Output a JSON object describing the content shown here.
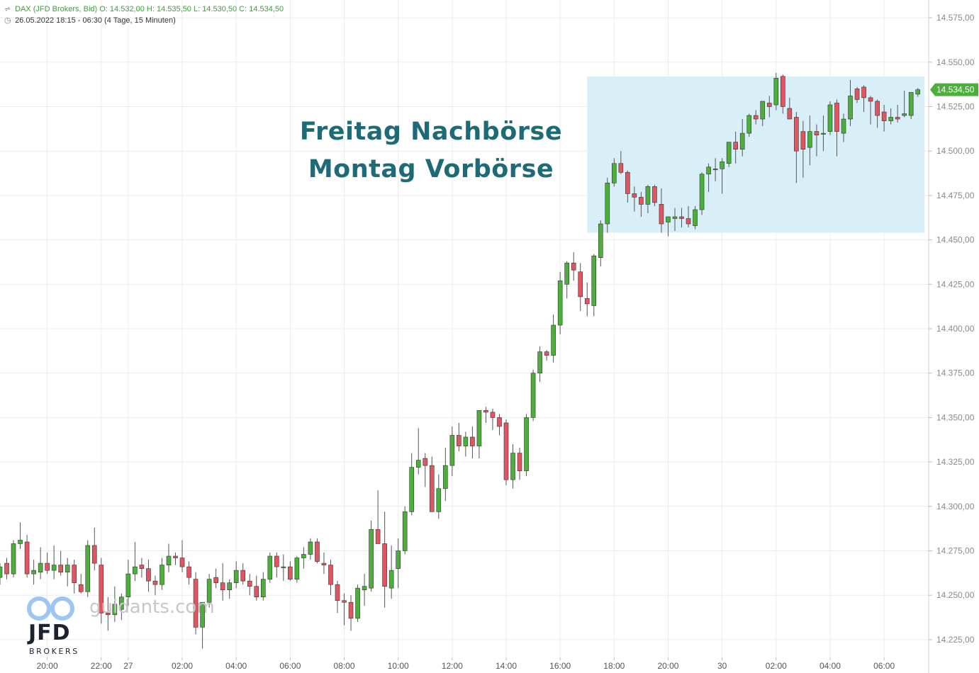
{
  "header": {
    "line1": "DAX (JFD Brokers, Bid)  O: 14.532,00  H: 14.535,50  L: 14.530,50  C: 14.534,50",
    "line2": "26.05.2022 18:15 - 06:30   (4 Tage, 15 Minuten)"
  },
  "annotation": {
    "line1": "Freitag Nachbörse",
    "line2": "Montag Vorbörse"
  },
  "watermark": "guidants.com",
  "logo": {
    "text": "JFD",
    "sub": "BROKERS"
  },
  "colors": {
    "up": "#4caf3a",
    "down": "#e0555f",
    "highlight": "#d8eff8",
    "price_tag": "#4caf3a",
    "title": "#1e6b78"
  },
  "chart_data": {
    "type": "candlestick",
    "y_axis": {
      "range": [
        14215,
        14585
      ],
      "ticks": [
        14225,
        14250,
        14275,
        14300,
        14325,
        14350,
        14375,
        14400,
        14425,
        14450,
        14475,
        14500,
        14525,
        14550,
        14575
      ],
      "tick_labels": [
        "14.225,00",
        "14.250,00",
        "14.275,00",
        "14.300,00",
        "14.325,00",
        "14.350,00",
        "14.375,00",
        "14.400,00",
        "14.425,00",
        "14.450,00",
        "14.475,00",
        "14.500,00",
        "14.525,00",
        "14.550,00",
        "14.575,00"
      ]
    },
    "x_axis": {
      "tick_labels": [
        "20:00",
        "22:00",
        "27",
        "02:00",
        "04:00",
        "06:00",
        "08:00",
        "10:00",
        "12:00",
        "14:00",
        "16:00",
        "18:00",
        "20:00",
        "30",
        "02:00",
        "04:00",
        "06:00"
      ],
      "tick_index": [
        7,
        15,
        19,
        27,
        35,
        43,
        51,
        59,
        67,
        75,
        83,
        91,
        99,
        107,
        115,
        123,
        131
      ]
    },
    "last_price": 14534.5,
    "last_price_label": "14.534,50",
    "highlight_region": {
      "from_index": 87,
      "to_index": 137,
      "y_from": 14454,
      "y_to": 14542
    },
    "candles": [
      [
        14260,
        14268,
        14256,
        14266
      ],
      [
        14268,
        14271,
        14259,
        14262
      ],
      [
        14262,
        14281,
        14260,
        14279
      ],
      [
        14279,
        14291,
        14276,
        14281
      ],
      [
        14280,
        14284,
        14260,
        14262
      ],
      [
        14262,
        14270,
        14256,
        14264
      ],
      [
        14263,
        14277,
        14259,
        14268
      ],
      [
        14268,
        14274,
        14262,
        14264
      ],
      [
        14264,
        14278,
        14259,
        14267
      ],
      [
        14267,
        14275,
        14261,
        14263
      ],
      [
        14263,
        14271,
        14255,
        14267
      ],
      [
        14267,
        14270,
        14251,
        14257
      ],
      [
        14256,
        14262,
        14251,
        14252
      ],
      [
        14252,
        14281,
        14249,
        14278
      ],
      [
        14278,
        14288,
        14264,
        14268
      ],
      [
        14267,
        14271,
        14234,
        14240
      ],
      [
        14240,
        14249,
        14230,
        14239
      ],
      [
        14239,
        14255,
        14235,
        14245
      ],
      [
        14242,
        14251,
        14236,
        14249
      ],
      [
        14249,
        14270,
        14244,
        14262
      ],
      [
        14262,
        14280,
        14258,
        14266
      ],
      [
        14267,
        14271,
        14260,
        14265
      ],
      [
        14265,
        14270,
        14252,
        14258
      ],
      [
        14258,
        14261,
        14250,
        14256
      ],
      [
        14256,
        14271,
        14253,
        14267
      ],
      [
        14267,
        14279,
        14263,
        14272
      ],
      [
        14272,
        14274,
        14267,
        14271
      ],
      [
        14271,
        14281,
        14263,
        14266
      ],
      [
        14266,
        14269,
        14256,
        14260
      ],
      [
        14259,
        14263,
        14228,
        14232
      ],
      [
        14232,
        14246,
        14220,
        14246
      ],
      [
        14246,
        14262,
        14243,
        14259
      ],
      [
        14260,
        14265,
        14254,
        14257
      ],
      [
        14257,
        14268,
        14247,
        14253
      ],
      [
        14253,
        14259,
        14248,
        14257
      ],
      [
        14257,
        14269,
        14254,
        14264
      ],
      [
        14264,
        14268,
        14256,
        14258
      ],
      [
        14258,
        14262,
        14250,
        14255
      ],
      [
        14255,
        14261,
        14247,
        14249
      ],
      [
        14249,
        14263,
        14247,
        14259
      ],
      [
        14259,
        14274,
        14257,
        14272
      ],
      [
        14272,
        14274,
        14260,
        14266
      ],
      [
        14266,
        14273,
        14258,
        14266
      ],
      [
        14266,
        14269,
        14258,
        14259
      ],
      [
        14259,
        14272,
        14257,
        14271
      ],
      [
        14271,
        14277,
        14265,
        14273
      ],
      [
        14273,
        14282,
        14270,
        14280
      ],
      [
        14280,
        14282,
        14268,
        14269
      ],
      [
        14268,
        14274,
        14262,
        14267
      ],
      [
        14267,
        14270,
        14250,
        14256
      ],
      [
        14256,
        14258,
        14240,
        14247
      ],
      [
        14247,
        14251,
        14233,
        14246
      ],
      [
        14246,
        14250,
        14230,
        14237
      ],
      [
        14237,
        14256,
        14235,
        14254
      ],
      [
        14253,
        14262,
        14244,
        14255
      ],
      [
        14254,
        14292,
        14252,
        14287
      ],
      [
        14287,
        14309,
        14282,
        14279
      ],
      [
        14279,
        14297,
        14243,
        14255
      ],
      [
        14254,
        14278,
        14248,
        14264
      ],
      [
        14265,
        14282,
        14254,
        14275
      ],
      [
        14275,
        14300,
        14273,
        14297
      ],
      [
        14297,
        14330,
        14295,
        14322
      ],
      [
        14322,
        14344,
        14318,
        14326
      ],
      [
        14327,
        14330,
        14311,
        14323
      ],
      [
        14323,
        14328,
        14297,
        14297
      ],
      [
        14297,
        14318,
        14293,
        14310
      ],
      [
        14310,
        14333,
        14303,
        14323
      ],
      [
        14323,
        14345,
        14317,
        14340
      ],
      [
        14340,
        14347,
        14331,
        14334
      ],
      [
        14334,
        14342,
        14328,
        14339
      ],
      [
        14339,
        14345,
        14327,
        14334
      ],
      [
        14334,
        14353,
        14327,
        14354
      ],
      [
        14354,
        14356,
        14347,
        14353
      ],
      [
        14353,
        14355,
        14343,
        14350
      ],
      [
        14350,
        14352,
        14340,
        14345
      ],
      [
        14347,
        14349,
        14312,
        14315
      ],
      [
        14315,
        14335,
        14310,
        14330
      ],
      [
        14330,
        14333,
        14315,
        14320
      ],
      [
        14320,
        14352,
        14317,
        14350
      ],
      [
        14350,
        14377,
        14348,
        14375
      ],
      [
        14375,
        14390,
        14370,
        14387
      ],
      [
        14387,
        14388,
        14382,
        14385
      ],
      [
        14385,
        14408,
        14381,
        14402
      ],
      [
        14402,
        14432,
        14397,
        14427
      ],
      [
        14425,
        14438,
        14417,
        14437
      ],
      [
        14437,
        14443,
        14427,
        14433
      ],
      [
        14432,
        14437,
        14410,
        14418
      ],
      [
        14417,
        14426,
        14407,
        14414
      ],
      [
        14413,
        14442,
        14407,
        14441
      ],
      [
        14440,
        14461,
        14435,
        14459
      ],
      [
        14459,
        14485,
        14454,
        14482
      ],
      [
        14482,
        14496,
        14480,
        14493
      ],
      [
        14493,
        14500,
        14487,
        14488
      ],
      [
        14488,
        14489,
        14471,
        14476
      ],
      [
        14476,
        14480,
        14466,
        14474
      ],
      [
        14474,
        14477,
        14463,
        14470
      ],
      [
        14470,
        14481,
        14465,
        14480
      ],
      [
        14480,
        14481,
        14469,
        14471
      ],
      [
        14470,
        14479,
        14454,
        14459
      ],
      [
        14460,
        14463,
        14452,
        14463
      ],
      [
        14462,
        14468,
        14455,
        14463
      ],
      [
        14463,
        14468,
        14457,
        14462
      ],
      [
        14462,
        14469,
        14457,
        14459
      ],
      [
        14458,
        14469,
        14456,
        14467
      ],
      [
        14467,
        14488,
        14464,
        14487
      ],
      [
        14487,
        14493,
        14477,
        14491
      ],
      [
        14490,
        14496,
        14483,
        14490
      ],
      [
        14490,
        14496,
        14476,
        14494
      ],
      [
        14493,
        14504,
        14491,
        14505
      ],
      [
        14505,
        14511,
        14493,
        14501
      ],
      [
        14501,
        14518,
        14497,
        14510
      ],
      [
        14510,
        14521,
        14508,
        14520
      ],
      [
        14520,
        14523,
        14515,
        14518
      ],
      [
        14518,
        14528,
        14514,
        14528
      ],
      [
        14527,
        14531,
        14519,
        14525
      ],
      [
        14526,
        14544,
        14523,
        14541
      ],
      [
        14542,
        14543,
        14521,
        14525
      ],
      [
        14524,
        14530,
        14518,
        14518
      ],
      [
        14519,
        14522,
        14482,
        14500
      ],
      [
        14511,
        14517,
        14485,
        14501
      ],
      [
        14502,
        14520,
        14492,
        14511
      ],
      [
        14511,
        14515,
        14497,
        14509
      ],
      [
        14510,
        14520,
        14500,
        14510
      ],
      [
        14511,
        14528,
        14509,
        14526
      ],
      [
        14527,
        14529,
        14497,
        14511
      ],
      [
        14510,
        14521,
        14505,
        14518
      ],
      [
        14518,
        14540,
        14514,
        14531
      ],
      [
        14535,
        14536,
        14527,
        14529
      ],
      [
        14536,
        14537,
        14522,
        14530
      ],
      [
        14530,
        14531,
        14515,
        14528
      ],
      [
        14528,
        14529,
        14513,
        14520
      ],
      [
        14522,
        14526,
        14511,
        14517
      ],
      [
        14517,
        14524,
        14515,
        14519
      ],
      [
        14519,
        14526,
        14516,
        14518
      ],
      [
        14520,
        14534,
        14519,
        14521
      ],
      [
        14520,
        14532,
        14518,
        14533
      ],
      [
        14532,
        14535.5,
        14530.5,
        14534.5
      ]
    ]
  }
}
